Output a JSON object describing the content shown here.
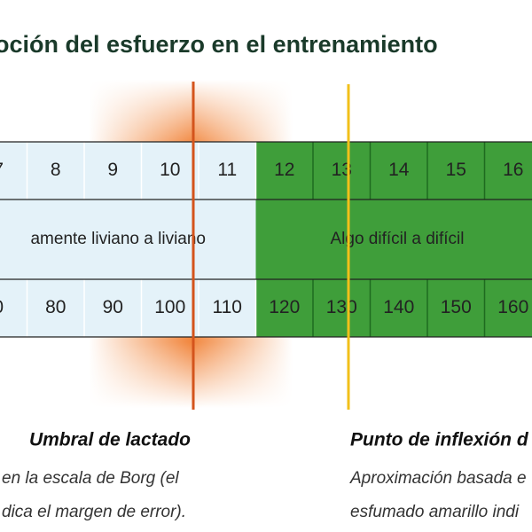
{
  "header": {
    "title": "oción del esfuerzo en el entrenamiento"
  },
  "scale": {
    "rpe": [
      "7",
      "8",
      "9",
      "10",
      "11",
      "12",
      "13",
      "14",
      "15",
      "16"
    ],
    "zones": [
      "amente liviano a liviano",
      "Algo difícil a difícil"
    ],
    "heart_rate": [
      "0",
      "80",
      "90",
      "100",
      "110",
      "120",
      "130",
      "140",
      "150",
      "160"
    ]
  },
  "notes": [
    {
      "title": "Umbral de lactado",
      "lines": [
        "en la escala de Borg (el",
        "dica el margen de error)."
      ]
    },
    {
      "title": "Punto de inflexión d",
      "lines": [
        "Aproximación basada e",
        "esfumado amarillo indi"
      ]
    }
  ]
}
